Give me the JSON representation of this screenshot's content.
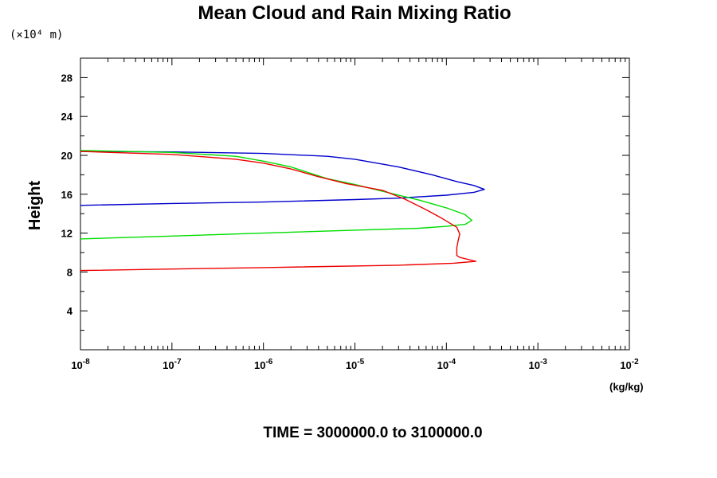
{
  "chart_data": {
    "type": "line",
    "title": "Mean Cloud and Rain Mixing Ratio",
    "ylabel": "Height",
    "y_scale_label": "(×10⁴ m)",
    "x_unit_label": "(kg/kg)",
    "footer": "TIME = 3000000.0 to 3100000.0",
    "x_scale": "log",
    "xlim": [
      1e-08,
      0.01
    ],
    "ylim": [
      0,
      30
    ],
    "x_ticks": [
      {
        "value": 1e-08,
        "mantissa": "10",
        "exp": "-8"
      },
      {
        "value": 1e-07,
        "mantissa": "10",
        "exp": "-7"
      },
      {
        "value": 1e-06,
        "mantissa": "10",
        "exp": "-6"
      },
      {
        "value": 1e-05,
        "mantissa": "10",
        "exp": "-5"
      },
      {
        "value": 0.0001,
        "mantissa": "10",
        "exp": "-4"
      },
      {
        "value": 0.001,
        "mantissa": "10",
        "exp": "-3"
      },
      {
        "value": 0.01,
        "mantissa": "10",
        "exp": "-2"
      }
    ],
    "y_ticks": [
      4,
      8,
      12,
      16,
      20,
      24,
      28
    ],
    "grid": false,
    "series": [
      {
        "color": "#0000cc",
        "points": [
          [
            1e-08,
            20.4
          ],
          [
            1e-07,
            20.35
          ],
          [
            1e-06,
            20.2
          ],
          [
            5e-06,
            19.9
          ],
          [
            1e-05,
            19.6
          ],
          [
            3e-05,
            18.8
          ],
          [
            7e-05,
            18.0
          ],
          [
            0.00013,
            17.3
          ],
          [
            0.0002,
            16.9
          ],
          [
            0.00026,
            16.5
          ],
          [
            0.0002,
            16.2
          ],
          [
            0.0001,
            15.9
          ],
          [
            3e-05,
            15.6
          ],
          [
            1e-05,
            15.45
          ],
          [
            1e-06,
            15.2
          ],
          [
            1e-07,
            15.05
          ],
          [
            1e-08,
            14.85
          ]
        ]
      },
      {
        "color": "#00dd00",
        "points": [
          [
            1e-08,
            20.5
          ],
          [
            1e-07,
            20.3
          ],
          [
            5e-07,
            19.9
          ],
          [
            1e-06,
            19.4
          ],
          [
            2e-06,
            18.8
          ],
          [
            5e-06,
            17.6
          ],
          [
            1e-05,
            17.0
          ],
          [
            2e-05,
            16.3
          ],
          [
            5e-05,
            15.4
          ],
          [
            0.0001,
            14.6
          ],
          [
            0.00016,
            13.9
          ],
          [
            0.00019,
            13.3
          ],
          [
            0.00016,
            12.9
          ],
          [
            0.0001,
            12.7
          ],
          [
            5e-05,
            12.5
          ],
          [
            1e-05,
            12.3
          ],
          [
            1e-06,
            12.0
          ],
          [
            1e-07,
            11.7
          ],
          [
            1e-08,
            11.4
          ]
        ]
      },
      {
        "color": "#ee0000",
        "points": [
          [
            1e-08,
            20.4
          ],
          [
            1e-07,
            20.1
          ],
          [
            5e-07,
            19.6
          ],
          [
            1e-06,
            19.2
          ],
          [
            2e-06,
            18.6
          ],
          [
            4e-06,
            17.8
          ],
          [
            8e-06,
            17.1
          ],
          [
            2e-05,
            16.4
          ],
          [
            3.5e-05,
            15.5
          ],
          [
            6e-05,
            14.4
          ],
          [
            9e-05,
            13.5
          ],
          [
            0.00013,
            12.6
          ],
          [
            0.00014,
            11.9
          ],
          [
            0.000135,
            11.3
          ],
          [
            0.00013,
            10.5
          ],
          [
            0.00013,
            9.7
          ],
          [
            0.00014,
            9.5
          ],
          [
            0.00021,
            9.1
          ],
          [
            0.00012,
            8.9
          ],
          [
            3e-05,
            8.7
          ],
          [
            1e-06,
            8.45
          ],
          [
            1e-07,
            8.3
          ],
          [
            1e-08,
            8.15
          ]
        ]
      }
    ]
  }
}
